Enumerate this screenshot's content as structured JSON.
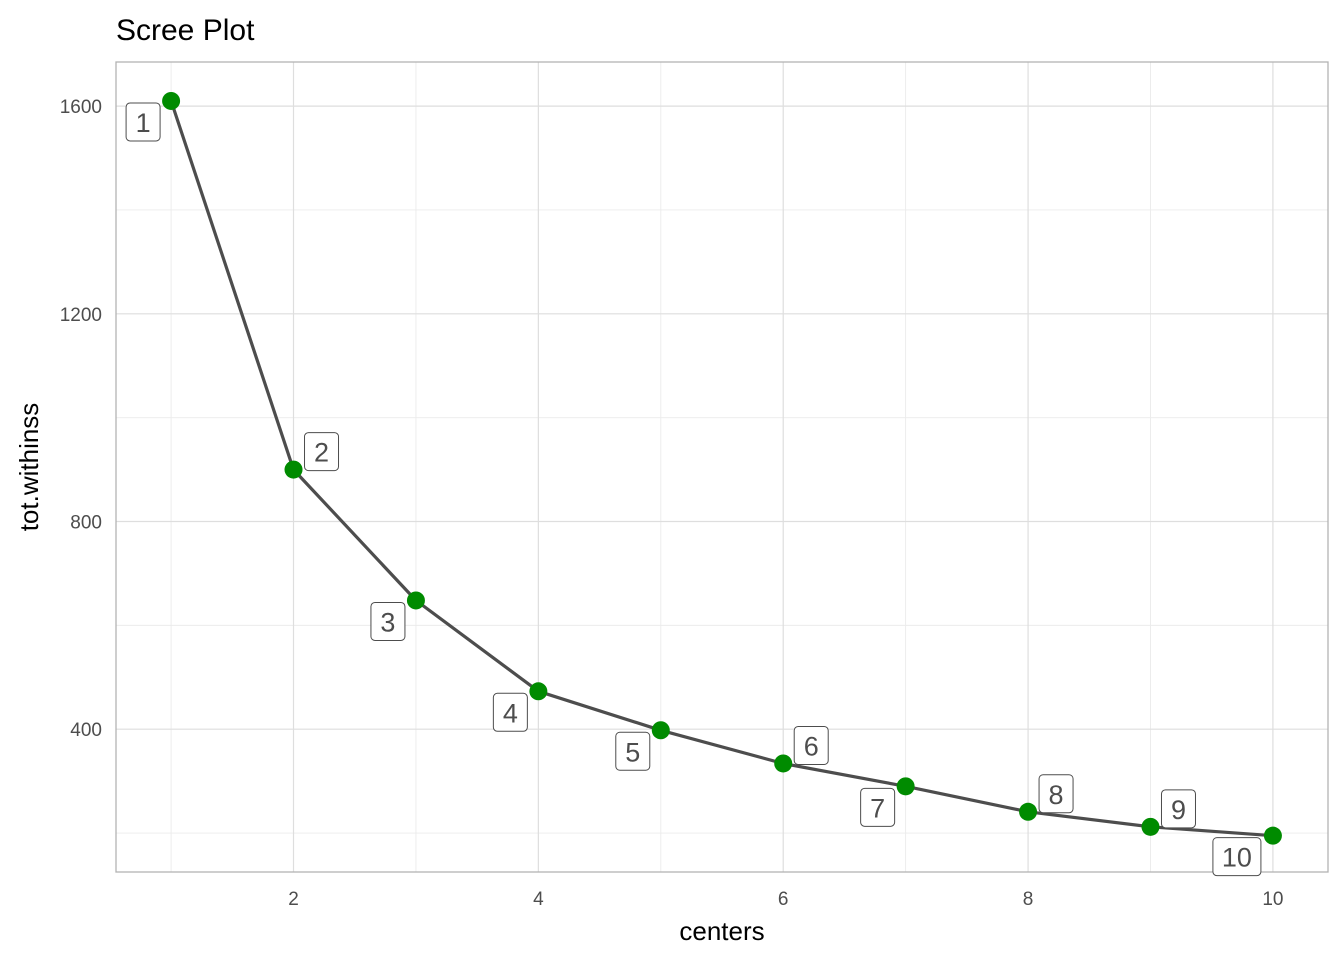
{
  "chart_data": {
    "type": "line",
    "title": "Scree Plot",
    "xlabel": "centers",
    "ylabel": "tot.withinss",
    "x": [
      1,
      2,
      3,
      4,
      5,
      6,
      7,
      8,
      9,
      10
    ],
    "y": [
      1610,
      900,
      648,
      473,
      398,
      334,
      290,
      241,
      212,
      195
    ],
    "point_labels": [
      "1",
      "2",
      "3",
      "4",
      "5",
      "6",
      "7",
      "8",
      "9",
      "10"
    ],
    "label_positions": [
      "lower-left",
      "upper-right",
      "lower-left",
      "lower-left",
      "lower-left",
      "upper-right",
      "lower-left",
      "upper-right",
      "upper-right",
      "lower-left"
    ],
    "xlim": [
      0.55,
      10.45
    ],
    "ylim": [
      125,
      1685
    ],
    "xticks": [
      2,
      4,
      6,
      8,
      10
    ],
    "xtick_labels": [
      "2",
      "4",
      "6",
      "8",
      "10"
    ],
    "yticks": [
      400,
      800,
      1200,
      1600
    ],
    "ytick_labels": [
      "400",
      "800",
      "1200",
      "1600"
    ],
    "x_minor_ticks": [
      1,
      3,
      5,
      7,
      9
    ],
    "y_minor_ticks": [
      200,
      600,
      1000,
      1400
    ],
    "grid": true,
    "line_color": "#4d4d4d",
    "point_color": "#008b00"
  }
}
